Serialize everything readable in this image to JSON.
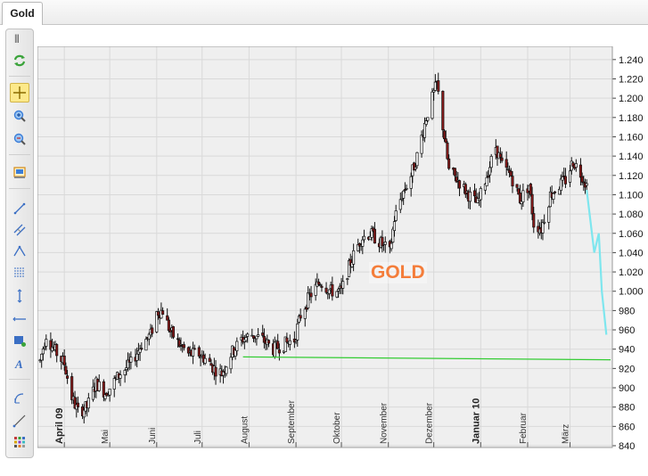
{
  "tabs": [
    {
      "label": "Gold"
    }
  ],
  "toolbar": {
    "items": [
      {
        "name": "refresh-icon",
        "color": "#3aa33a"
      },
      {
        "name": "crosshair-icon",
        "color": "#d9a300"
      },
      {
        "name": "zoom-in-icon",
        "color": "#3b7dd8"
      },
      {
        "name": "zoom-out-icon",
        "color": "#c23b3b"
      },
      {
        "name": "chart-settings-icon",
        "color": "#d48a16"
      },
      {
        "name": "trend-line-icon",
        "color": "#3b6fc4"
      },
      {
        "name": "channel-line-icon",
        "color": "#3b6fc4"
      },
      {
        "name": "angle-tool-icon",
        "color": "#3b6fc4"
      },
      {
        "name": "fibonacci-icon",
        "color": "#3b6fc4"
      },
      {
        "name": "vertical-line-icon",
        "color": "#3b6fc4"
      },
      {
        "name": "horizontal-line-icon",
        "color": "#3b6fc4"
      },
      {
        "name": "rectangle-icon",
        "color": "#3b6fc4"
      },
      {
        "name": "text-tool-icon",
        "color": "#3b6fc4"
      },
      {
        "name": "arc-tool-icon",
        "color": "#3b6fc4"
      },
      {
        "name": "ray-line-icon",
        "color": "#3b6fc4"
      },
      {
        "name": "color-grid-icon",
        "color": "#c23b3b"
      }
    ]
  },
  "chart": {
    "watermark": "GOLD",
    "colors": {
      "background": "#efefef",
      "grid": "#d9d9d9",
      "candle_up": "#ffffff",
      "candle_down": "#8b1a1a",
      "wick": "#111111",
      "support_line": "#33cc33",
      "projection_line": "#7ee6ee"
    }
  },
  "chart_data": {
    "type": "candlestick",
    "title": "GOLD",
    "ylim": [
      840,
      1250
    ],
    "y_ticks": [
      "840",
      "860",
      "880",
      "900",
      "920",
      "940",
      "960",
      "980",
      "1.000",
      "1.020",
      "1.040",
      "1.060",
      "1.080",
      "1.100",
      "1.120",
      "1.140",
      "1.160",
      "1.180",
      "1.200",
      "1.220",
      "1.240"
    ],
    "y_tick_values": [
      840,
      860,
      880,
      900,
      920,
      940,
      960,
      980,
      1000,
      1020,
      1040,
      1060,
      1080,
      1100,
      1120,
      1140,
      1160,
      1180,
      1200,
      1220,
      1240
    ],
    "x_range": [
      "2009-03-16",
      "2010-03-26"
    ],
    "month_labels": [
      {
        "label": "April 09",
        "date": "2009-04-01",
        "bold": true
      },
      {
        "label": "Mai",
        "date": "2009-05-01",
        "bold": false
      },
      {
        "label": "Juni",
        "date": "2009-06-01",
        "bold": false
      },
      {
        "label": "Juli",
        "date": "2009-07-01",
        "bold": false
      },
      {
        "label": "August",
        "date": "2009-08-01",
        "bold": false
      },
      {
        "label": "September",
        "date": "2009-09-01",
        "bold": false
      },
      {
        "label": "Oktober",
        "date": "2009-10-01",
        "bold": false
      },
      {
        "label": "November",
        "date": "2009-11-01",
        "bold": false
      },
      {
        "label": "Dezember",
        "date": "2009-12-01",
        "bold": false
      },
      {
        "label": "Januar 10",
        "date": "2010-01-01",
        "bold": true
      },
      {
        "label": "Februar",
        "date": "2010-02-01",
        "bold": false
      },
      {
        "label": "März",
        "date": "2010-03-01",
        "bold": false
      }
    ],
    "price_path": [
      [
        "2009-03-16",
        928
      ],
      [
        "2009-03-20",
        955
      ],
      [
        "2009-03-25",
        940
      ],
      [
        "2009-04-01",
        925
      ],
      [
        "2009-04-06",
        890
      ],
      [
        "2009-04-10",
        875
      ],
      [
        "2009-04-16",
        880
      ],
      [
        "2009-04-22",
        905
      ],
      [
        "2009-04-28",
        895
      ],
      [
        "2009-05-01",
        900
      ],
      [
        "2009-05-08",
        915
      ],
      [
        "2009-05-15",
        925
      ],
      [
        "2009-05-22",
        945
      ],
      [
        "2009-05-28",
        955
      ],
      [
        "2009-06-01",
        978
      ],
      [
        "2009-06-05",
        980
      ],
      [
        "2009-06-10",
        958
      ],
      [
        "2009-06-16",
        945
      ],
      [
        "2009-06-22",
        935
      ],
      [
        "2009-06-29",
        935
      ],
      [
        "2009-07-03",
        930
      ],
      [
        "2009-07-09",
        920
      ],
      [
        "2009-07-14",
        915
      ],
      [
        "2009-07-20",
        935
      ],
      [
        "2009-07-27",
        950
      ],
      [
        "2009-08-03",
        955
      ],
      [
        "2009-08-10",
        950
      ],
      [
        "2009-08-17",
        940
      ],
      [
        "2009-08-24",
        945
      ],
      [
        "2009-08-31",
        950
      ],
      [
        "2009-09-04",
        975
      ],
      [
        "2009-09-10",
        995
      ],
      [
        "2009-09-17",
        1010
      ],
      [
        "2009-09-24",
        1000
      ],
      [
        "2009-10-01",
        1000
      ],
      [
        "2009-10-07",
        1030
      ],
      [
        "2009-10-14",
        1055
      ],
      [
        "2009-10-20",
        1060
      ],
      [
        "2009-10-27",
        1050
      ],
      [
        "2009-11-02",
        1040
      ],
      [
        "2009-11-05",
        1075
      ],
      [
        "2009-11-10",
        1100
      ],
      [
        "2009-11-16",
        1120
      ],
      [
        "2009-11-20",
        1140
      ],
      [
        "2009-11-26",
        1180
      ],
      [
        "2009-12-01",
        1205
      ],
      [
        "2009-12-03",
        1215
      ],
      [
        "2009-12-08",
        1160
      ],
      [
        "2009-12-11",
        1125
      ],
      [
        "2009-12-17",
        1115
      ],
      [
        "2009-12-24",
        1100
      ],
      [
        "2009-12-30",
        1090
      ],
      [
        "2010-01-05",
        1120
      ],
      [
        "2010-01-11",
        1150
      ],
      [
        "2010-01-15",
        1130
      ],
      [
        "2010-01-21",
        1120
      ],
      [
        "2010-01-27",
        1095
      ],
      [
        "2010-02-02",
        1110
      ],
      [
        "2010-02-05",
        1070
      ],
      [
        "2010-02-10",
        1065
      ],
      [
        "2010-02-16",
        1100
      ],
      [
        "2010-02-22",
        1110
      ],
      [
        "2010-02-26",
        1115
      ],
      [
        "2010-03-03",
        1135
      ],
      [
        "2010-03-09",
        1120
      ],
      [
        "2010-03-12",
        1110
      ]
    ],
    "support_line": {
      "y_start": 932,
      "y_end": 929
    },
    "projection_path": [
      [
        "2010-03-12",
        1105
      ],
      [
        "2010-03-17",
        1040
      ],
      [
        "2010-03-20",
        1060
      ],
      [
        "2010-03-22",
        1000
      ],
      [
        "2010-03-25",
        955
      ]
    ]
  }
}
